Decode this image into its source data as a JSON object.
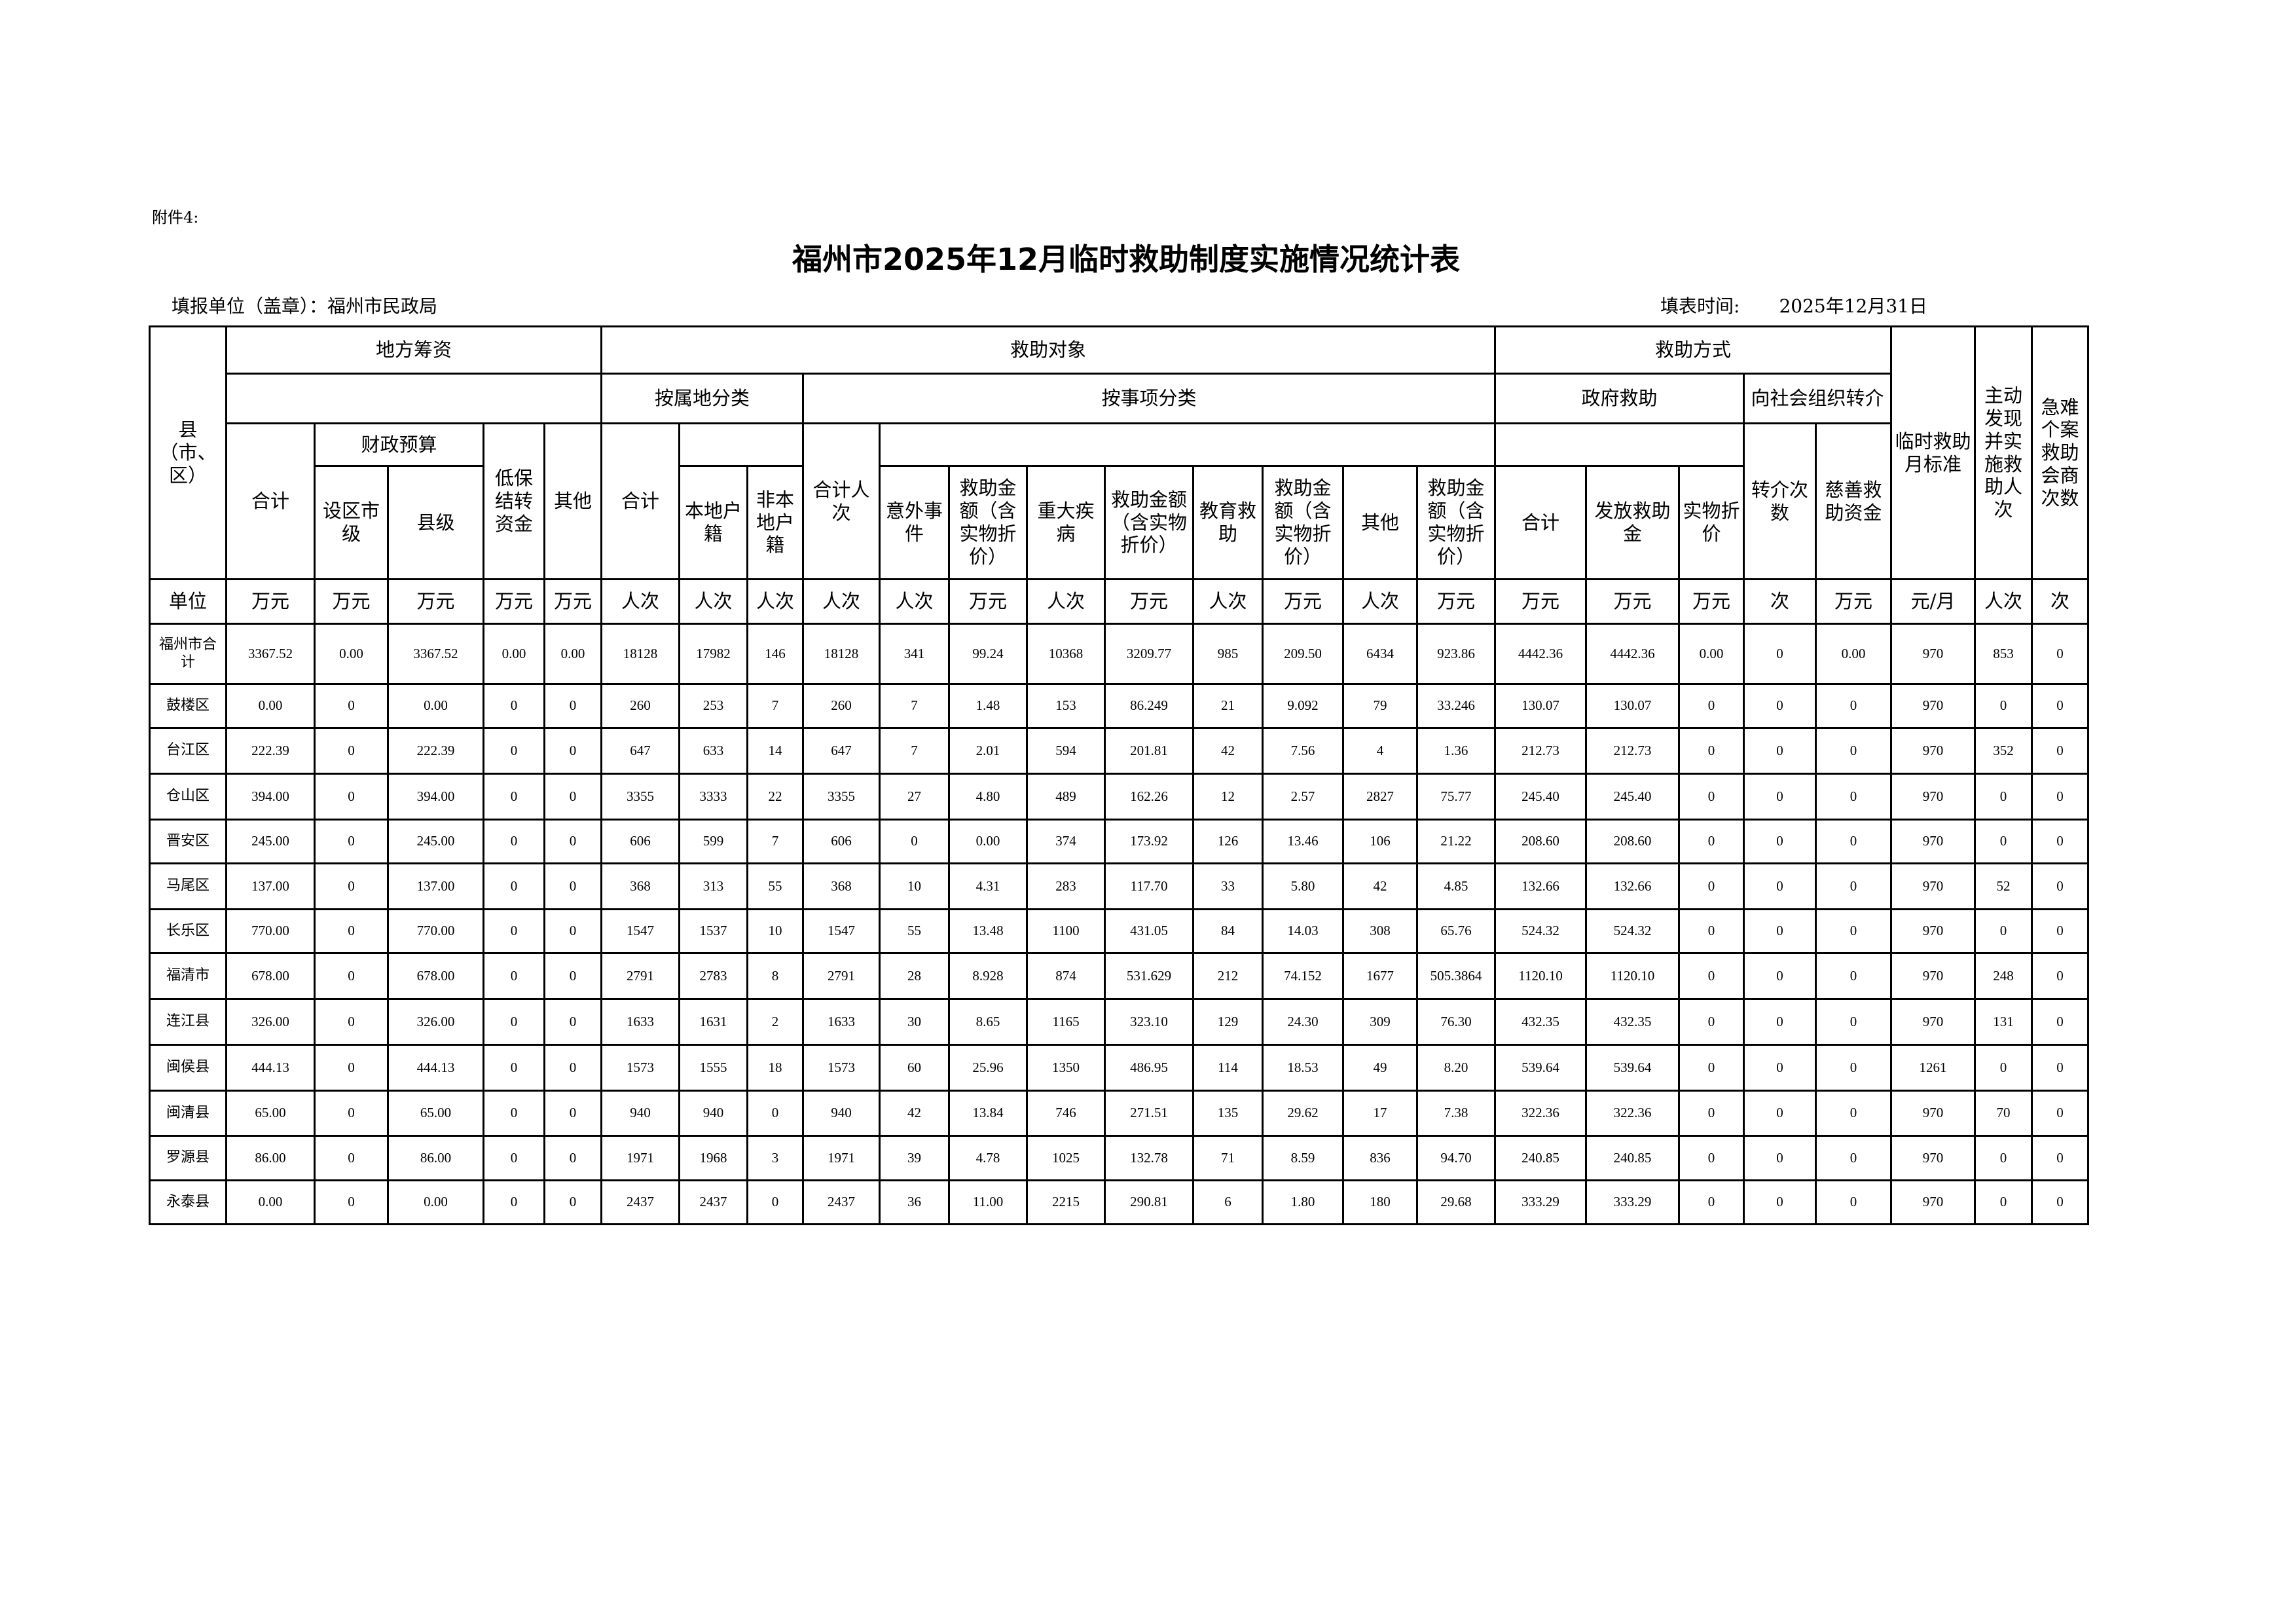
{
  "attachment": "附件4:",
  "title": "福州市2025年12月临时救助制度实施情况统计表",
  "fill_unit": "填报单位（盖章）：福州市民政局",
  "fill_time_label": "填表时间:",
  "fill_time": "2025年12月31日",
  "header": {
    "county": "县（市、区）",
    "local_funding": "地方筹资",
    "recipients": "救助对象",
    "methods": "救助方式",
    "monthly_standard": "临时救助月标准",
    "proactive": "主动发现并实施救助人次",
    "urgent_cases": "急难个案救助会商次数",
    "by_domicile": "按属地分类",
    "by_item": "按事项分类",
    "gov_aid": "政府救助",
    "referral": "向社会组织转介",
    "lf_total": "合计",
    "fiscal_budget": "财政预算",
    "dibao_carryover": "低保结转资金",
    "lf_other": "其他",
    "city_level": "设区市级",
    "county_level": "县级",
    "dom_total": "合计",
    "local_household": "本地户籍",
    "nonlocal_household": "非本地户籍",
    "item_total": "合计人次",
    "accident": "意外事件",
    "accident_amount": "救助金额（含实物折价）",
    "major_illness": "重大疾病",
    "illness_amount": "救助金额（含实物折价）",
    "education": "教育救助",
    "education_amount": "救助金额（含实物折价）",
    "item_other": "其他",
    "other_amount": "救助金额（含实物折价）",
    "gov_total": "合计",
    "cash": "发放救助金",
    "in_kind": "实物折价",
    "referral_count": "转介次数",
    "charity_funds": "慈善救助资金"
  },
  "units": [
    "单位",
    "万元",
    "万元",
    "万元",
    "万元",
    "万元",
    "人次",
    "人次",
    "人次",
    "人次",
    "人次",
    "万元",
    "人次",
    "万元",
    "人次",
    "万元",
    "人次",
    "万元",
    "万元",
    "万元",
    "万元",
    "次",
    "万元",
    "元/月",
    "人次",
    "次"
  ],
  "rows": [
    [
      "福州市合计",
      "3367.52",
      "0.00",
      "3367.52",
      "0.00",
      "0.00",
      "18128",
      "17982",
      "146",
      "18128",
      "341",
      "99.24",
      "10368",
      "3209.77",
      "985",
      "209.50",
      "6434",
      "923.86",
      "4442.36",
      "4442.36",
      "0.00",
      "0",
      "0.00",
      "970",
      "853",
      "0"
    ],
    [
      "鼓楼区",
      "0.00",
      "0",
      "0.00",
      "0",
      "0",
      "260",
      "253",
      "7",
      "260",
      "7",
      "1.48",
      "153",
      "86.249",
      "21",
      "9.092",
      "79",
      "33.246",
      "130.07",
      "130.07",
      "0",
      "0",
      "0",
      "970",
      "0",
      "0"
    ],
    [
      "台江区",
      "222.39",
      "0",
      "222.39",
      "0",
      "0",
      "647",
      "633",
      "14",
      "647",
      "7",
      "2.01",
      "594",
      "201.81",
      "42",
      "7.56",
      "4",
      "1.36",
      "212.73",
      "212.73",
      "0",
      "0",
      "0",
      "970",
      "352",
      "0"
    ],
    [
      "仓山区",
      "394.00",
      "0",
      "394.00",
      "0",
      "0",
      "3355",
      "3333",
      "22",
      "3355",
      "27",
      "4.80",
      "489",
      "162.26",
      "12",
      "2.57",
      "2827",
      "75.77",
      "245.40",
      "245.40",
      "0",
      "0",
      "0",
      "970",
      "0",
      "0"
    ],
    [
      "晋安区",
      "245.00",
      "0",
      "245.00",
      "0",
      "0",
      "606",
      "599",
      "7",
      "606",
      "0",
      "0.00",
      "374",
      "173.92",
      "126",
      "13.46",
      "106",
      "21.22",
      "208.60",
      "208.60",
      "0",
      "0",
      "0",
      "970",
      "0",
      "0"
    ],
    [
      "马尾区",
      "137.00",
      "0",
      "137.00",
      "0",
      "0",
      "368",
      "313",
      "55",
      "368",
      "10",
      "4.31",
      "283",
      "117.70",
      "33",
      "5.80",
      "42",
      "4.85",
      "132.66",
      "132.66",
      "0",
      "0",
      "0",
      "970",
      "52",
      "0"
    ],
    [
      "长乐区",
      "770.00",
      "0",
      "770.00",
      "0",
      "0",
      "1547",
      "1537",
      "10",
      "1547",
      "55",
      "13.48",
      "1100",
      "431.05",
      "84",
      "14.03",
      "308",
      "65.76",
      "524.32",
      "524.32",
      "0",
      "0",
      "0",
      "970",
      "0",
      "0"
    ],
    [
      "福清市",
      "678.00",
      "0",
      "678.00",
      "0",
      "0",
      "2791",
      "2783",
      "8",
      "2791",
      "28",
      "8.928",
      "874",
      "531.629",
      "212",
      "74.152",
      "1677",
      "505.3864",
      "1120.10",
      "1120.10",
      "0",
      "0",
      "0",
      "970",
      "248",
      "0"
    ],
    [
      "连江县",
      "326.00",
      "0",
      "326.00",
      "0",
      "0",
      "1633",
      "1631",
      "2",
      "1633",
      "30",
      "8.65",
      "1165",
      "323.10",
      "129",
      "24.30",
      "309",
      "76.30",
      "432.35",
      "432.35",
      "0",
      "0",
      "0",
      "970",
      "131",
      "0"
    ],
    [
      "闽侯县",
      "444.13",
      "0",
      "444.13",
      "0",
      "0",
      "1573",
      "1555",
      "18",
      "1573",
      "60",
      "25.96",
      "1350",
      "486.95",
      "114",
      "18.53",
      "49",
      "8.20",
      "539.64",
      "539.64",
      "0",
      "0",
      "0",
      "1261",
      "0",
      "0"
    ],
    [
      "闽清县",
      "65.00",
      "0",
      "65.00",
      "0",
      "0",
      "940",
      "940",
      "0",
      "940",
      "42",
      "13.84",
      "746",
      "271.51",
      "135",
      "29.62",
      "17",
      "7.38",
      "322.36",
      "322.36",
      "0",
      "0",
      "0",
      "970",
      "70",
      "0"
    ],
    [
      "罗源县",
      "86.00",
      "0",
      "86.00",
      "0",
      "0",
      "1971",
      "1968",
      "3",
      "1971",
      "39",
      "4.78",
      "1025",
      "132.78",
      "71",
      "8.59",
      "836",
      "94.70",
      "240.85",
      "240.85",
      "0",
      "0",
      "0",
      "970",
      "0",
      "0"
    ],
    [
      "永泰县",
      "0.00",
      "0",
      "0.00",
      "0",
      "0",
      "2437",
      "2437",
      "0",
      "2437",
      "36",
      "11.00",
      "2215",
      "290.81",
      "6",
      "1.80",
      "180",
      "29.68",
      "333.29",
      "333.29",
      "0",
      "0",
      "0",
      "970",
      "0",
      "0"
    ]
  ]
}
